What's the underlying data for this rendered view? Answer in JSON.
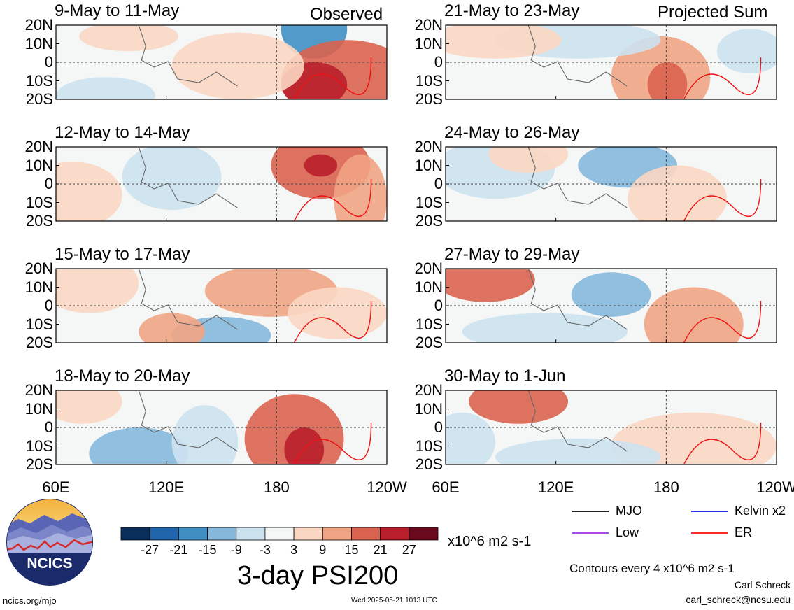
{
  "chart_data": {
    "type": "heatmap",
    "title": "3-day PSI200",
    "units": "x10^6 m2 s-1",
    "contour_note": "Contours every 4 x10^6 m2 s-1",
    "column_headers": [
      "Observed",
      "Projected Sum"
    ],
    "x_axis": {
      "ticks": [
        {
          "label": "60E",
          "lon": 60
        },
        {
          "label": "120E",
          "lon": 120
        },
        {
          "label": "180",
          "lon": 180
        },
        {
          "label": "120W",
          "lon": 240
        }
      ],
      "range": [
        60,
        240
      ]
    },
    "y_axis": {
      "ticks": [
        {
          "label": "20N",
          "lat": 20
        },
        {
          "label": "10N",
          "lat": 10
        },
        {
          "label": "0",
          "lat": 0
        },
        {
          "label": "10S",
          "lat": -10
        },
        {
          "label": "20S",
          "lat": -20
        }
      ],
      "range": [
        -20,
        20
      ]
    },
    "colorbar": {
      "levels": [
        "-27",
        "-21",
        "-15",
        "-9",
        "-3",
        "3",
        "9",
        "15",
        "21",
        "27"
      ],
      "colors": [
        "#0b2f5c",
        "#2166ac",
        "#3f8fc3",
        "#86b8db",
        "#cde2ef",
        "#f5f7f7",
        "#fbd7c3",
        "#f1a483",
        "#d9634e",
        "#b81f2b",
        "#6b0a1f"
      ]
    },
    "legend": [
      {
        "label": "MJO",
        "color": "#000000"
      },
      {
        "label": "Kelvin x2",
        "color": "#1010ee"
      },
      {
        "label": "Low",
        "color": "#9b30e0"
      },
      {
        "label": "ER",
        "color": "#ee1010"
      }
    ],
    "panels": [
      {
        "title": "9-May to 11-May",
        "group": "Observed"
      },
      {
        "title": "12-May to 14-May",
        "group": "Observed"
      },
      {
        "title": "15-May to 17-May",
        "group": "Observed"
      },
      {
        "title": "18-May to 20-May",
        "group": "Observed"
      },
      {
        "title": "21-May to 23-May",
        "group": "Projected Sum"
      },
      {
        "title": "24-May to 26-May",
        "group": "Projected Sum"
      },
      {
        "title": "27-May to 29-May",
        "group": "Projected Sum"
      },
      {
        "title": "30-May to 1-Jun",
        "group": "Projected Sum"
      }
    ]
  },
  "footer": {
    "site": "ncics.org/mjo",
    "timestamp": "Wed 2025-05-21 1013 UTC",
    "author": "Carl Schreck",
    "email": "carl_schreck@ncsu.edu",
    "logo_text": "NCICS"
  }
}
